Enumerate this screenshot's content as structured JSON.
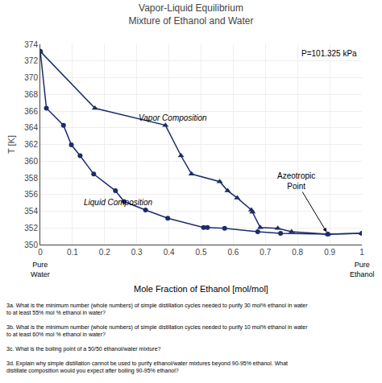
{
  "chart_data": {
    "type": "line",
    "title": "Vapor-Liquid Equilibrium",
    "subtitle": "Mixture of Ethanol and Water",
    "xlabel": "Mole Fraction of Ethanol [mol/mol]",
    "ylabel": "T [K]",
    "xlim": [
      0,
      1
    ],
    "ylim": [
      350,
      374
    ],
    "xticks": [
      0,
      0.1,
      0.2,
      0.3,
      0.4,
      0.5,
      0.6,
      0.7,
      0.8,
      0.9,
      1
    ],
    "yticks": [
      350,
      352,
      354,
      356,
      358,
      360,
      362,
      364,
      366,
      368,
      370,
      372,
      374
    ],
    "grid": true,
    "color": "#1c2b6b",
    "series": [
      {
        "label": "Liquid Composition",
        "marker": "circle",
        "x": [
          0.0,
          0.019,
          0.0721,
          0.0966,
          0.1238,
          0.1661,
          0.2337,
          0.2608,
          0.3273,
          0.3965,
          0.5079,
          0.5198,
          0.5732,
          0.6763,
          0.7472,
          0.8943,
          1.0
        ],
        "values": [
          373.15,
          366.34,
          364.3,
          361.95,
          360.65,
          358.45,
          356.45,
          355.15,
          354.15,
          353.15,
          352.05,
          352.05,
          351.95,
          351.55,
          351.35,
          351.25,
          351.35
        ]
      },
      {
        "label": "Vapor Composition",
        "marker": "triangle-up",
        "x": [
          0.0,
          0.17,
          0.3891,
          0.4375,
          0.4704,
          0.558,
          0.5826,
          0.6122,
          0.6564,
          0.6599,
          0.6841,
          0.7385,
          0.7815,
          0.8943,
          1.0
        ],
        "values": [
          373.15,
          366.34,
          364.3,
          360.65,
          358.45,
          357.55,
          356.45,
          355.6,
          354.15,
          353.9,
          352.05,
          351.95,
          351.55,
          351.25,
          351.35
        ]
      }
    ],
    "annotations": [
      {
        "text": "Azeotropic\nPoint",
        "x": 0.8943,
        "y": 351.25
      }
    ],
    "note": "P=101.325 kPa",
    "x_end_labels": [
      {
        "x": 0,
        "text": "Pure\nWater"
      },
      {
        "x": 1,
        "text": "Pure\nEthanol"
      }
    ],
    "questions": [
      [
        "3a. What is the minimum number (whole numbers) of simple distillation cycles needed to purify 30 mol% ethanol in water",
        "to at least 55% mol % ethanol in water?"
      ],
      [
        "3b. What is the minimum number (whole numbers) of simple distillation cycles needed to purify 10 mol% ethanol in water",
        "to at least 60% mol % ethanol in water?"
      ],
      [
        "3c. What is the boiling point of a 50/50 ethanol/water mixture?"
      ],
      [
        "3d. Explain why simple distillation cannot be used to purify ethanol/water mixtures beyond 90-95% ethanol. What",
        "distillate composition would you expect after boiling 90-95% ethanol?"
      ]
    ]
  }
}
